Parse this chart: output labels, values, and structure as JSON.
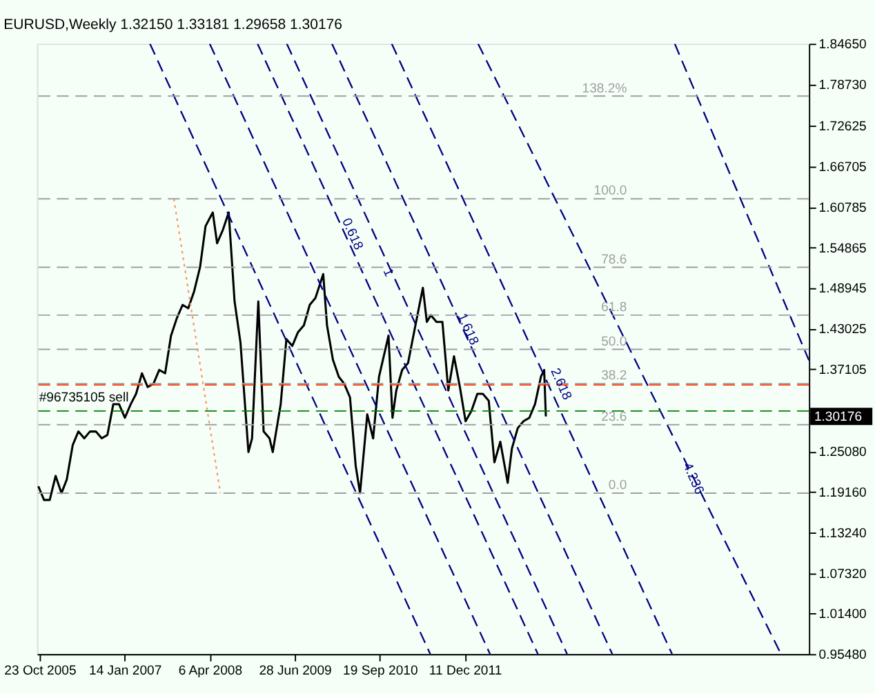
{
  "chart_data": {
    "type": "line",
    "title": "EURUSD,Weekly  1.32150  1.33181  1.29658  1.30176",
    "xlim": [
      "2005-10-09",
      "2016-11-27"
    ],
    "xticks": [
      {
        "value": "2005-10-23",
        "label": "23 Oct 2005"
      },
      {
        "value": "2007-01-14",
        "label": "14 Jan 2007"
      },
      {
        "value": "2008-04-06",
        "label": "6 Apr 2008"
      },
      {
        "value": "2009-06-28",
        "label": "28 Jun 2009"
      },
      {
        "value": "2010-09-19",
        "label": "19 Sep 2010"
      },
      {
        "value": "2011-12-11",
        "label": "11 Dec 2011"
      }
    ],
    "ylim": [
      0.9548,
      1.8465
    ],
    "yticks": [
      {
        "value": 1.8465,
        "label": "1.84650"
      },
      {
        "value": 1.7873,
        "label": "1.78730"
      },
      {
        "value": 1.72625,
        "label": "1.72625"
      },
      {
        "value": 1.66705,
        "label": "1.66705"
      },
      {
        "value": 1.60785,
        "label": "1.60785"
      },
      {
        "value": 1.54865,
        "label": "1.54865"
      },
      {
        "value": 1.48945,
        "label": "1.48945"
      },
      {
        "value": 1.43025,
        "label": "1.43025"
      },
      {
        "value": 1.37105,
        "label": "1.37105"
      },
      {
        "value": 1.2508,
        "label": "1.25080"
      },
      {
        "value": 1.1916,
        "label": "1.19160"
      },
      {
        "value": 1.1324,
        "label": "1.13240"
      },
      {
        "value": 1.0732,
        "label": "1.07320"
      },
      {
        "value": 1.014,
        "label": "1.01400"
      },
      {
        "value": 0.9548,
        "label": "0.95480"
      }
    ],
    "grid": false,
    "series": [
      {
        "color": "#000000",
        "line_style": "solid",
        "x": [
          "2005-10-16",
          "2005-11-15",
          "2005-12-15",
          "2006-01-15",
          "2006-02-15",
          "2006-03-15",
          "2006-04-15",
          "2006-05-15",
          "2006-06-15",
          "2006-07-15",
          "2006-08-15",
          "2006-09-15",
          "2006-10-15",
          "2006-11-15",
          "2006-12-15",
          "2007-01-15",
          "2007-02-15",
          "2007-03-15",
          "2007-04-15",
          "2007-05-15",
          "2007-06-15",
          "2007-07-15",
          "2007-08-15",
          "2007-09-15",
          "2007-10-15",
          "2007-11-15",
          "2007-12-15",
          "2008-01-15",
          "2008-02-15",
          "2008-03-15",
          "2008-04-22",
          "2008-05-15",
          "2008-06-15",
          "2008-07-15",
          "2008-08-15",
          "2008-09-15",
          "2008-10-27",
          "2008-11-15",
          "2008-12-18",
          "2009-01-15",
          "2009-02-15",
          "2009-03-04",
          "2009-04-15",
          "2009-05-15",
          "2009-06-15",
          "2009-07-15",
          "2009-08-15",
          "2009-09-15",
          "2009-10-15",
          "2009-11-25",
          "2009-12-15",
          "2010-01-15",
          "2010-02-15",
          "2010-03-15",
          "2010-04-15",
          "2010-05-15",
          "2010-06-07",
          "2010-07-15",
          "2010-08-15",
          "2010-09-15",
          "2010-11-04",
          "2010-11-25",
          "2010-12-15",
          "2011-01-15",
          "2011-02-15",
          "2011-03-15",
          "2011-05-04",
          "2011-05-25",
          "2011-06-15",
          "2011-07-15",
          "2011-08-15",
          "2011-09-15",
          "2011-10-15",
          "2011-11-15",
          "2011-12-15",
          "2012-01-15",
          "2012-02-15",
          "2012-03-15",
          "2012-04-15",
          "2012-05-15",
          "2012-06-15",
          "2012-07-24",
          "2012-08-15",
          "2012-09-15",
          "2012-10-15",
          "2012-11-15",
          "2012-12-15",
          "2013-01-15",
          "2013-02-01",
          "2013-02-10"
        ],
        "values": [
          1.2,
          1.18,
          1.18,
          1.215,
          1.19,
          1.21,
          1.26,
          1.28,
          1.27,
          1.28,
          1.28,
          1.27,
          1.275,
          1.32,
          1.32,
          1.3,
          1.32,
          1.335,
          1.365,
          1.345,
          1.35,
          1.37,
          1.365,
          1.42,
          1.445,
          1.465,
          1.46,
          1.485,
          1.52,
          1.58,
          1.6,
          1.555,
          1.575,
          1.6,
          1.47,
          1.41,
          1.25,
          1.27,
          1.47,
          1.28,
          1.27,
          1.25,
          1.32,
          1.415,
          1.405,
          1.425,
          1.435,
          1.465,
          1.475,
          1.51,
          1.435,
          1.385,
          1.36,
          1.35,
          1.33,
          1.23,
          1.19,
          1.305,
          1.27,
          1.36,
          1.42,
          1.3,
          1.34,
          1.37,
          1.38,
          1.42,
          1.49,
          1.44,
          1.45,
          1.44,
          1.44,
          1.34,
          1.39,
          1.345,
          1.295,
          1.31,
          1.335,
          1.335,
          1.325,
          1.235,
          1.265,
          1.205,
          1.255,
          1.285,
          1.295,
          1.3,
          1.32,
          1.36,
          1.37,
          1.302
        ]
      },
      {
        "color": "#fa9a6a",
        "line_style": "dotted",
        "x": [
          "2007-09-30",
          "2008-06-01"
        ],
        "values": [
          1.62,
          1.19
        ]
      },
      {
        "color": "#000080",
        "line_style": "dashed",
        "x": [
          "2007-05-27",
          "2011-06-12"
        ],
        "values": [
          1.8465,
          0.9548
        ]
      },
      {
        "color": "#000080",
        "line_style": "dashed",
        "x": [
          "2008-04-06",
          "2012-04-22"
        ],
        "values": [
          1.8465,
          0.9548
        ]
      },
      {
        "color": "#000080",
        "line_style": "dashed",
        "x": [
          "2008-12-14",
          "2012-12-30"
        ],
        "values": [
          1.8465,
          0.9548
        ]
      },
      {
        "color": "#000080",
        "line_style": "dashed",
        "x": [
          "2009-05-17",
          "2013-06-02"
        ],
        "values": [
          1.8465,
          0.9548
        ]
      },
      {
        "color": "#000080",
        "line_style": "dashed",
        "x": [
          "2010-01-10",
          "2014-01-26"
        ],
        "values": [
          1.8465,
          0.9548
        ]
      },
      {
        "color": "#000080",
        "line_style": "dashed",
        "x": [
          "2010-11-21",
          "2014-12-07"
        ],
        "values": [
          1.8465,
          0.9548
        ]
      },
      {
        "color": "#000080",
        "line_style": "dashed",
        "x": [
          "2012-02-19",
          "2016-07-03"
        ],
        "values": [
          1.8465,
          0.9548
        ]
      },
      {
        "color": "#000080",
        "line_style": "dashed",
        "x": [
          "2014-12-21",
          "2016-11-27"
        ],
        "values": [
          1.8465,
          1.384
        ]
      }
    ],
    "ref_lines": [
      {
        "axis": "y",
        "value": 1.77,
        "color": "#a0a0a0",
        "line_style": "dashed"
      },
      {
        "axis": "y",
        "value": 1.62,
        "color": "#a0a0a0",
        "line_style": "dashed"
      },
      {
        "axis": "y",
        "value": 1.52,
        "color": "#a0a0a0",
        "line_style": "dashed"
      },
      {
        "axis": "y",
        "value": 1.45,
        "color": "#a0a0a0",
        "line_style": "dashed"
      },
      {
        "axis": "y",
        "value": 1.4,
        "color": "#a0a0a0",
        "line_style": "dashed"
      },
      {
        "axis": "y",
        "value": 1.35,
        "color": "#a0a0a0",
        "line_style": "dashed"
      },
      {
        "axis": "y",
        "value": 1.29,
        "color": "#a0a0a0",
        "line_style": "dashed"
      },
      {
        "axis": "y",
        "value": 1.19,
        "color": "#a0a0a0",
        "line_style": "dashed"
      },
      {
        "axis": "y",
        "value": 1.348,
        "color": "#ff3300",
        "line_style": "dashed"
      },
      {
        "axis": "y",
        "value": 1.31,
        "color": "#008000",
        "line_style": "dashed"
      }
    ],
    "annotations": [
      {
        "text": "138.2%",
        "x": "2014-04-13",
        "y": 1.77
      },
      {
        "text": "100.0",
        "x": "2014-04-13",
        "y": 1.62
      },
      {
        "text": "78.6",
        "x": "2014-04-13",
        "y": 1.52
      },
      {
        "text": "61.8",
        "x": "2014-04-13",
        "y": 1.45
      },
      {
        "text": "50.0",
        "x": "2014-04-13",
        "y": 1.4
      },
      {
        "text": "38.2",
        "x": "2014-04-13",
        "y": 1.35
      },
      {
        "text": "23.6",
        "x": "2014-04-13",
        "y": 1.29
      },
      {
        "text": "0.0",
        "x": "2014-04-13",
        "y": 1.19
      },
      {
        "text": "0.618",
        "x": "2010-04-11",
        "y": 1.579
      },
      {
        "text": "1",
        "x": "2010-10-17",
        "y": 1.523
      },
      {
        "text": "1.618",
        "x": "2011-12-11",
        "y": 1.44
      },
      {
        "text": "2.618",
        "x": "2013-04-14",
        "y": 1.36
      },
      {
        "text": "4.236",
        "x": "2015-03-12",
        "y": 1.222
      },
      {
        "text": "#96735105 sell",
        "x": "2005-10-20",
        "y": 1.31
      },
      "1.30176"
    ]
  }
}
